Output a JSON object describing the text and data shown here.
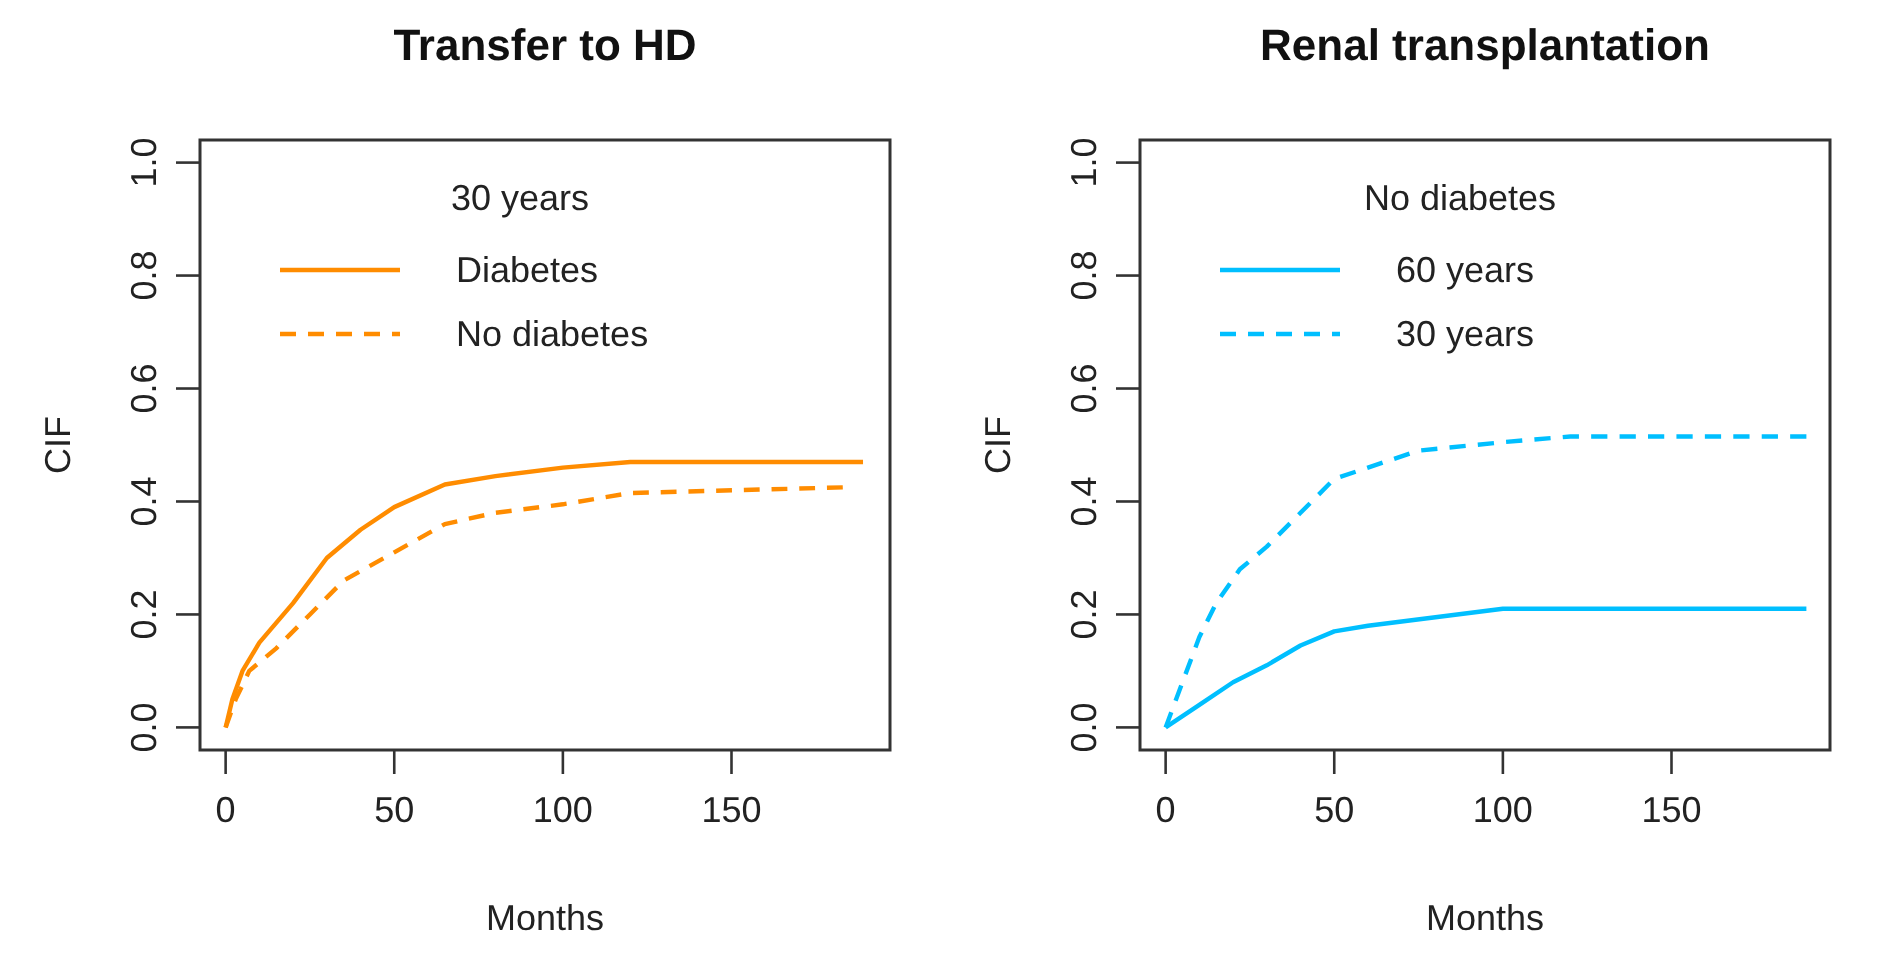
{
  "chart_data": [
    {
      "type": "line",
      "title": "Transfer to HD",
      "xlabel": "Months",
      "ylabel": "CIF",
      "xlim": [
        -7.6,
        197
      ],
      "ylim": [
        -0.04,
        1.04
      ],
      "xticks": [
        0,
        50,
        100,
        150
      ],
      "yticks": [
        {
          "value": 0,
          "label": "0.0"
        },
        {
          "value": 0.2,
          "label": "0.2"
        },
        {
          "value": 0.4,
          "label": "0.4"
        },
        {
          "value": 0.6,
          "label": "0.6"
        },
        {
          "value": 0.8,
          "label": "0.8"
        },
        {
          "value": 1,
          "label": "1.0"
        }
      ],
      "legend": "top left",
      "legend_title": "30 years",
      "grid": false,
      "series": [
        {
          "name": "Diabetes",
          "color": "#ff8c00",
          "line_style": "solid",
          "x": [
            0,
            2,
            5,
            10,
            20,
            30,
            40,
            50,
            65,
            80,
            100,
            120,
            189
          ],
          "values": [
            0,
            0.05,
            0.1,
            0.15,
            0.22,
            0.3,
            0.35,
            0.39,
            0.43,
            0.445,
            0.46,
            0.47,
            0.47
          ]
        },
        {
          "name": "No diabetes",
          "color": "#ff8c00",
          "line_style": "dashed",
          "x": [
            0,
            3,
            7,
            15,
            25,
            35,
            50,
            65,
            80,
            100,
            120,
            183
          ],
          "values": [
            0,
            0.05,
            0.1,
            0.14,
            0.2,
            0.26,
            0.31,
            0.36,
            0.38,
            0.395,
            0.415,
            0.425
          ]
        }
      ]
    },
    {
      "type": "line",
      "title": "Renal transplantation",
      "xlabel": "Months",
      "ylabel": "CIF",
      "xlim": [
        -7.6,
        197
      ],
      "ylim": [
        -0.04,
        1.04
      ],
      "xticks": [
        0,
        50,
        100,
        150
      ],
      "yticks": [
        {
          "value": 0,
          "label": "0.0"
        },
        {
          "value": 0.2,
          "label": "0.2"
        },
        {
          "value": 0.4,
          "label": "0.4"
        },
        {
          "value": 0.6,
          "label": "0.6"
        },
        {
          "value": 0.8,
          "label": "0.8"
        },
        {
          "value": 1,
          "label": "1.0"
        }
      ],
      "legend": "top left",
      "legend_title": "No diabetes",
      "grid": false,
      "series": [
        {
          "name": "60 years",
          "color": "#00bfff",
          "line_style": "solid",
          "x": [
            0,
            10,
            20,
            30,
            40,
            50,
            60,
            80,
            100,
            190
          ],
          "values": [
            0,
            0.04,
            0.08,
            0.11,
            0.145,
            0.17,
            0.18,
            0.195,
            0.21,
            0.21
          ]
        },
        {
          "name": "30 years",
          "color": "#00bfff",
          "line_style": "dashed",
          "x": [
            0,
            5,
            10,
            15,
            22,
            30,
            40,
            50,
            60,
            75,
            100,
            120,
            190
          ],
          "values": [
            0,
            0.08,
            0.16,
            0.22,
            0.28,
            0.32,
            0.38,
            0.44,
            0.46,
            0.49,
            0.505,
            0.515,
            0.515
          ]
        }
      ]
    }
  ]
}
